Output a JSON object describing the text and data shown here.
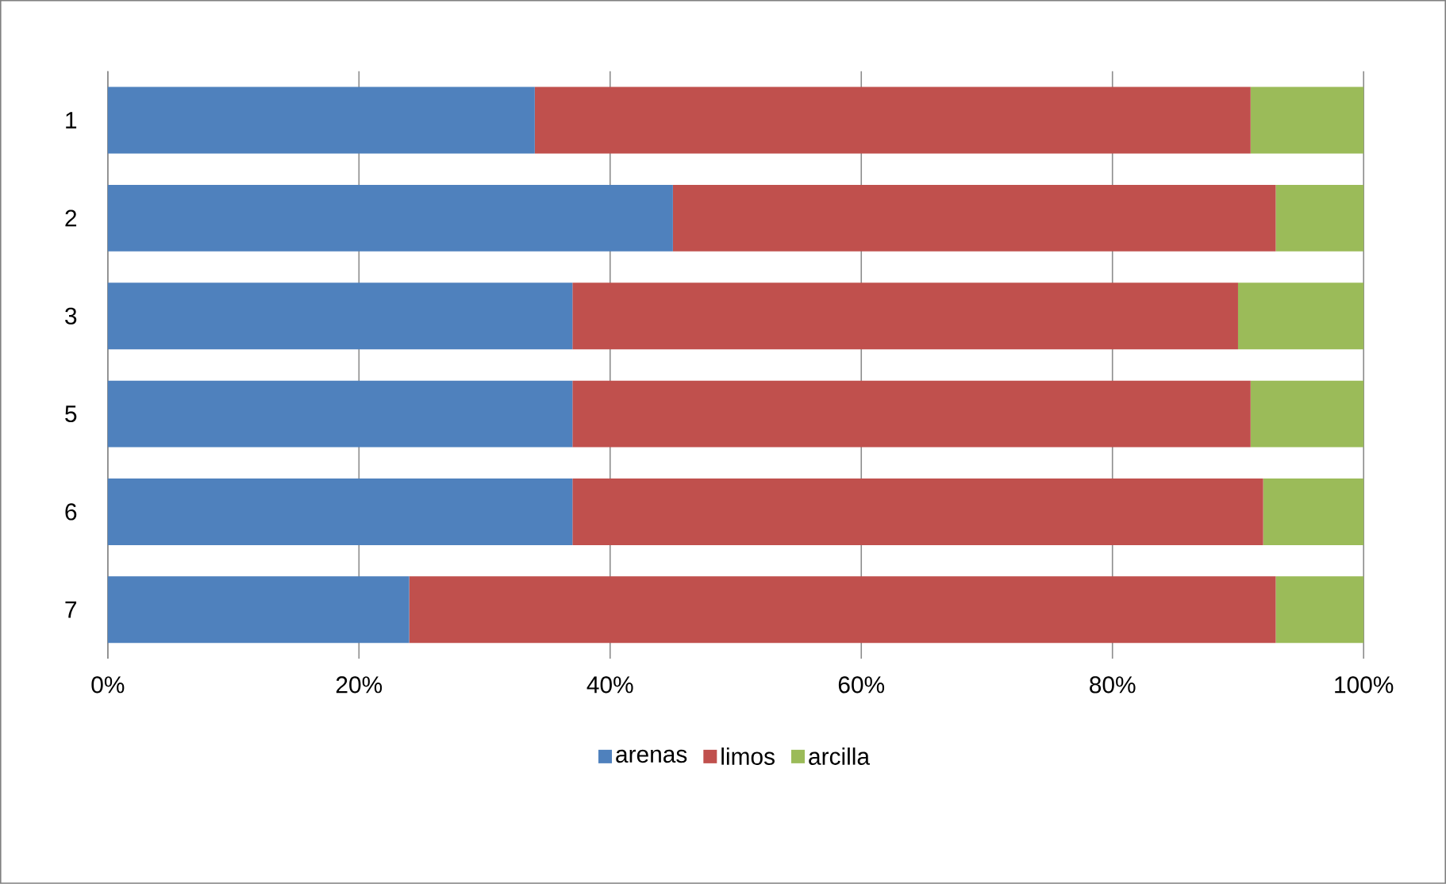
{
  "chart_data": {
    "type": "bar",
    "orientation": "horizontal",
    "stacked": true,
    "categories": [
      "1",
      "2",
      "3",
      "5",
      "6",
      "7"
    ],
    "series": [
      {
        "name": "arenas",
        "color": "#4f81bd",
        "values": [
          34,
          45,
          37,
          37,
          37,
          24
        ]
      },
      {
        "name": "limos",
        "color": "#c0504d",
        "values": [
          57,
          48,
          53,
          54,
          55,
          69
        ]
      },
      {
        "name": "arcilla",
        "color": "#9bbb59",
        "values": [
          9,
          7,
          10,
          9,
          8,
          7
        ]
      }
    ],
    "xlim": [
      0,
      100
    ],
    "xticks": [
      {
        "value": 0,
        "label": "0%"
      },
      {
        "value": 20,
        "label": "20%"
      },
      {
        "value": 40,
        "label": "40%"
      },
      {
        "value": 60,
        "label": "60%"
      },
      {
        "value": 80,
        "label": "80%"
      },
      {
        "value": 100,
        "label": "100%"
      }
    ],
    "grid": "x",
    "legend": "bottom"
  }
}
